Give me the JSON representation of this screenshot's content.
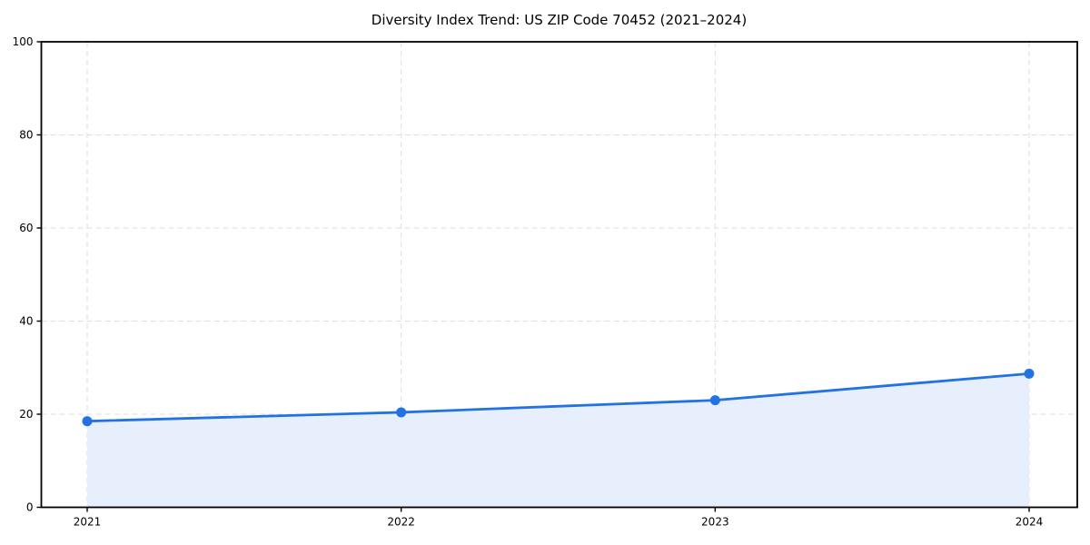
{
  "chart_data": {
    "type": "line",
    "title": "Diversity Index Trend: US ZIP Code 70452 (2021–2024)",
    "categories": [
      "2021",
      "2022",
      "2023",
      "2024"
    ],
    "series": [
      {
        "name": "Diversity Index",
        "values": [
          18.5,
          20.4,
          23.0,
          28.7
        ]
      }
    ],
    "xlabel": "",
    "ylabel": "",
    "ylim": [
      0,
      100
    ],
    "yticks": [
      0,
      20,
      40,
      60,
      80,
      100
    ],
    "grid": true,
    "grid_style": "dashed",
    "legend_position": "none",
    "colors": {
      "line": "#2272e3",
      "marker": "#2272e3",
      "area_fill": "#e7effc",
      "gridline": "#dedede",
      "frame": "#000000",
      "tick_text": "#000000"
    }
  }
}
